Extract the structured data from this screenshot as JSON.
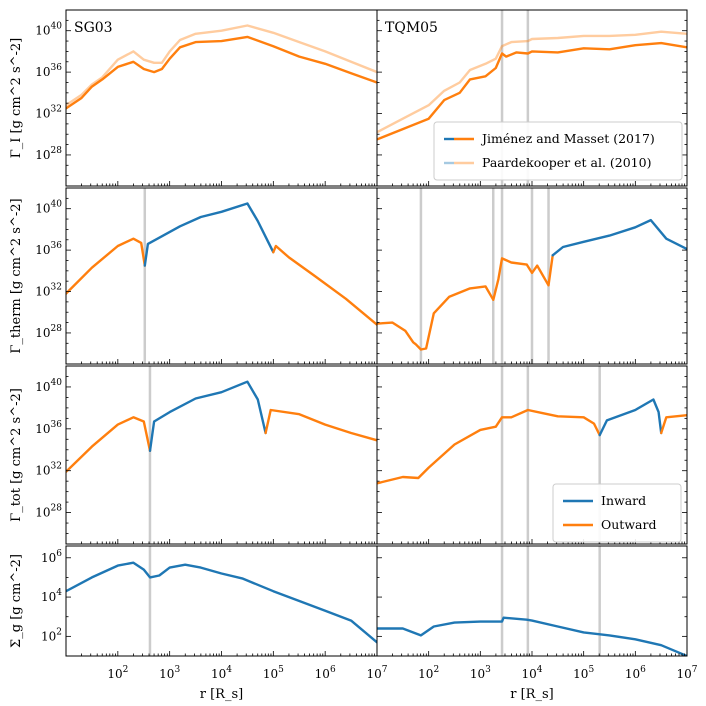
{
  "chart_data": {
    "type": "line",
    "layout": "4 rows x 2 columns, shared x axis, log-log",
    "xlabel": "r [R_s]",
    "xlim": [
      10,
      10000000
    ],
    "x_tick_labels": [
      "10^2",
      "10^3",
      "10^4",
      "10^5",
      "10^6",
      "10^7"
    ],
    "colors": {
      "inward": "#1f77b4",
      "outward": "#ff7f0e",
      "vline": "#cccccc"
    },
    "columns": [
      "SG03",
      "TQM05"
    ],
    "rows": [
      {
        "id": "gamma_I",
        "ylabel": "Γ_I [g cm^2 s^-2]",
        "ylim_log10": [
          25,
          42
        ],
        "y_tick_labels": [
          "10^28",
          "10^32",
          "10^36",
          "10^40"
        ],
        "legend": [
          "Jiménez and Masset (2017)",
          "Paardekooper et al. (2010)"
        ]
      },
      {
        "id": "gamma_therm",
        "ylabel": "Γ_therm [g cm^2 s^-2]",
        "ylim_log10": [
          25,
          42
        ],
        "y_tick_labels": [
          "10^28",
          "10^32",
          "10^36",
          "10^40"
        ]
      },
      {
        "id": "gamma_tot",
        "ylabel": "Γ_tot [g cm^2 s^-2]",
        "ylim_log10": [
          25,
          42
        ],
        "y_tick_labels": [
          "10^28",
          "10^32",
          "10^36",
          "10^40"
        ],
        "legend": [
          "Inward",
          "Outward"
        ]
      },
      {
        "id": "sigma_g",
        "ylabel": "Σ_g [g cm^-2]",
        "ylim_log10": [
          1,
          6.6
        ],
        "y_tick_labels": [
          "10^2",
          "10^4",
          "10^6"
        ]
      }
    ],
    "panels": {
      "SG03": {
        "vlines_log10_r": {
          "gamma_therm": [
            2.52
          ],
          "gamma_tot": [
            2.62
          ],
          "sigma_g": [
            2.62
          ]
        },
        "gamma_I": {
          "JM17": [
            [
              1,
              32.5
            ],
            [
              1.3,
              33.5
            ],
            [
              1.5,
              34.6
            ],
            [
              1.7,
              35.3
            ],
            [
              2,
              36.5
            ],
            [
              2.3,
              37
            ],
            [
              2.5,
              36.3
            ],
            [
              2.7,
              36
            ],
            [
              2.85,
              36.3
            ],
            [
              3,
              37.3
            ],
            [
              3.2,
              38.4
            ],
            [
              3.5,
              38.9
            ],
            [
              4,
              39
            ],
            [
              4.5,
              39.4
            ],
            [
              5,
              38.5
            ],
            [
              5.5,
              37.5
            ],
            [
              6,
              36.8
            ],
            [
              6.5,
              35.9
            ],
            [
              7,
              35
            ]
          ],
          "P10": [
            [
              1,
              32.8
            ],
            [
              1.3,
              33.8
            ],
            [
              1.5,
              34.8
            ],
            [
              1.7,
              35.5
            ],
            [
              2,
              37.2
            ],
            [
              2.3,
              38
            ],
            [
              2.5,
              37.2
            ],
            [
              2.7,
              36.9
            ],
            [
              2.85,
              36.9
            ],
            [
              3,
              38
            ],
            [
              3.2,
              39.1
            ],
            [
              3.5,
              39.7
            ],
            [
              4,
              40
            ],
            [
              4.5,
              40.5
            ],
            [
              5,
              39.8
            ],
            [
              5.5,
              38.9
            ],
            [
              6,
              38
            ],
            [
              6.5,
              37
            ],
            [
              7,
              36
            ]
          ]
        },
        "gamma_therm": {
          "outward": [
            [
              1,
              31.8
            ],
            [
              1.5,
              34.3
            ],
            [
              2,
              36.4
            ],
            [
              2.3,
              37.1
            ],
            [
              2.45,
              36.7
            ],
            [
              2.52,
              34.5
            ]
          ],
          "inward": [
            [
              2.52,
              34.5
            ],
            [
              2.58,
              36.6
            ],
            [
              2.8,
              37.2
            ],
            [
              3.2,
              38.3
            ],
            [
              3.6,
              39.2
            ],
            [
              4,
              39.7
            ],
            [
              4.5,
              40.5
            ],
            [
              4.7,
              38.8
            ],
            [
              4.9,
              36.8
            ],
            [
              5,
              35.8
            ]
          ],
          "outward_tail": [
            [
              5,
              35.8
            ],
            [
              5.05,
              36.4
            ],
            [
              5.3,
              35.3
            ],
            [
              5.8,
              33.5
            ],
            [
              6.4,
              31.3
            ],
            [
              7,
              28.8
            ]
          ]
        },
        "gamma_tot": {
          "outward": [
            [
              1,
              31.9
            ],
            [
              1.5,
              34.3
            ],
            [
              2,
              36.4
            ],
            [
              2.3,
              37.1
            ],
            [
              2.5,
              36.7
            ],
            [
              2.62,
              33.9
            ]
          ],
          "inward": [
            [
              2.62,
              33.9
            ],
            [
              2.7,
              36.7
            ],
            [
              3,
              37.6
            ],
            [
              3.5,
              38.9
            ],
            [
              4,
              39.5
            ],
            [
              4.5,
              40.5
            ],
            [
              4.7,
              38.8
            ],
            [
              4.85,
              35.6
            ]
          ],
          "outward_tail": [
            [
              4.85,
              35.6
            ],
            [
              4.95,
              37.8
            ],
            [
              5.5,
              37.4
            ],
            [
              6,
              36.4
            ],
            [
              6.5,
              35.6
            ],
            [
              7,
              34.9
            ]
          ]
        },
        "sigma_g": {
          "inward": [
            [
              1,
              4.3
            ],
            [
              1.5,
              5
            ],
            [
              2,
              5.6
            ],
            [
              2.3,
              5.75
            ],
            [
              2.5,
              5.4
            ],
            [
              2.62,
              5
            ],
            [
              2.8,
              5.1
            ],
            [
              3,
              5.5
            ],
            [
              3.3,
              5.65
            ],
            [
              3.6,
              5.5
            ],
            [
              4,
              5.2
            ],
            [
              4.4,
              4.95
            ],
            [
              5,
              4.3
            ],
            [
              5.5,
              3.8
            ],
            [
              6,
              3.3
            ],
            [
              6.5,
              2.8
            ],
            [
              7,
              1.7
            ]
          ]
        }
      },
      "TQM05": {
        "vlines_log10_r": {
          "gamma_I": [
            3.42,
            3.92
          ],
          "gamma_therm": [
            1.85,
            3.25,
            3.42,
            4.0,
            4.32
          ],
          "gamma_tot": [
            3.42,
            3.92,
            5.31
          ],
          "sigma_g": [
            3.42,
            3.92,
            5.31
          ]
        },
        "gamma_I": {
          "JM17": [
            [
              1,
              29.5
            ],
            [
              1.5,
              30.5
            ],
            [
              2,
              31.5
            ],
            [
              2.3,
              33.3
            ],
            [
              2.6,
              34
            ],
            [
              2.8,
              35.3
            ],
            [
              3.1,
              35.6
            ],
            [
              3.3,
              36.4
            ],
            [
              3.42,
              37.8
            ],
            [
              3.5,
              37.5
            ],
            [
              3.7,
              37.9
            ],
            [
              3.92,
              37.8
            ],
            [
              4,
              38
            ],
            [
              4.5,
              37.9
            ],
            [
              5,
              38.3
            ],
            [
              5.5,
              38.2
            ],
            [
              6,
              38.6
            ],
            [
              6.5,
              38.8
            ],
            [
              7,
              38.4
            ]
          ],
          "P10": [
            [
              1,
              30.2
            ],
            [
              1.5,
              31.5
            ],
            [
              2,
              32.8
            ],
            [
              2.3,
              34.2
            ],
            [
              2.6,
              35
            ],
            [
              2.8,
              36.2
            ],
            [
              3.1,
              36.8
            ],
            [
              3.3,
              37.3
            ],
            [
              3.42,
              38.5
            ],
            [
              3.6,
              38.9
            ],
            [
              3.92,
              39
            ],
            [
              4,
              39.2
            ],
            [
              4.5,
              39.3
            ],
            [
              5,
              39.5
            ],
            [
              5.5,
              39.5
            ],
            [
              6,
              39.6
            ],
            [
              6.5,
              39.9
            ],
            [
              7,
              39.7
            ]
          ]
        },
        "gamma_therm": {
          "outward": [
            [
              1,
              28.9
            ],
            [
              1.3,
              29
            ],
            [
              1.55,
              28.2
            ],
            [
              1.7,
              27.1
            ],
            [
              1.75,
              26.9
            ],
            [
              1.85,
              26.4
            ],
            [
              1.95,
              26.5
            ],
            [
              2.1,
              29.9
            ],
            [
              2.4,
              31.5
            ],
            [
              2.8,
              32.3
            ],
            [
              3.1,
              32.5
            ],
            [
              3.25,
              31.2
            ],
            [
              3.35,
              33.2
            ],
            [
              3.42,
              35.2
            ],
            [
              3.6,
              34.8
            ],
            [
              3.9,
              34.6
            ],
            [
              4.0,
              33.8
            ],
            [
              4.1,
              34.5
            ],
            [
              4.32,
              32.6
            ],
            [
              4.4,
              35.5
            ]
          ],
          "inward": [
            [
              4.4,
              35.5
            ],
            [
              4.6,
              36.3
            ],
            [
              5,
              36.8
            ],
            [
              5.5,
              37.4
            ],
            [
              6,
              38.2
            ],
            [
              6.3,
              38.9
            ],
            [
              6.6,
              37.1
            ],
            [
              7,
              36.1
            ]
          ]
        },
        "gamma_tot": {
          "outward": [
            [
              1,
              30.8
            ],
            [
              1.5,
              31.4
            ],
            [
              1.8,
              31.3
            ],
            [
              2,
              32.3
            ],
            [
              2.5,
              34.5
            ],
            [
              3,
              35.9
            ],
            [
              3.3,
              36.2
            ],
            [
              3.42,
              37.1
            ],
            [
              3.6,
              37.1
            ],
            [
              3.92,
              37.8
            ],
            [
              4.2,
              37.5
            ],
            [
              4.5,
              37.2
            ],
            [
              5,
              37.1
            ],
            [
              5.2,
              36.5
            ],
            [
              5.31,
              35.4
            ]
          ],
          "inward": [
            [
              5.31,
              35.4
            ],
            [
              5.45,
              36.8
            ],
            [
              6,
              37.8
            ],
            [
              6.35,
              38.8
            ],
            [
              6.45,
              37.6
            ],
            [
              6.5,
              35.6
            ]
          ],
          "outward_tail": [
            [
              6.5,
              35.6
            ],
            [
              6.6,
              37.1
            ],
            [
              7,
              37.3
            ]
          ]
        },
        "sigma_g": {
          "inward": [
            [
              1,
              2.4
            ],
            [
              1.5,
              2.4
            ],
            [
              1.85,
              2.05
            ],
            [
              2.1,
              2.5
            ],
            [
              2.5,
              2.7
            ],
            [
              3,
              2.75
            ],
            [
              3.42,
              2.75
            ],
            [
              3.45,
              2.95
            ],
            [
              3.9,
              2.85
            ],
            [
              4,
              2.8
            ],
            [
              4.5,
              2.5
            ],
            [
              5,
              2.2
            ],
            [
              5.5,
              2.05
            ],
            [
              6,
              1.85
            ],
            [
              6.5,
              1.55
            ],
            [
              7,
              1.0
            ]
          ]
        }
      }
    }
  }
}
